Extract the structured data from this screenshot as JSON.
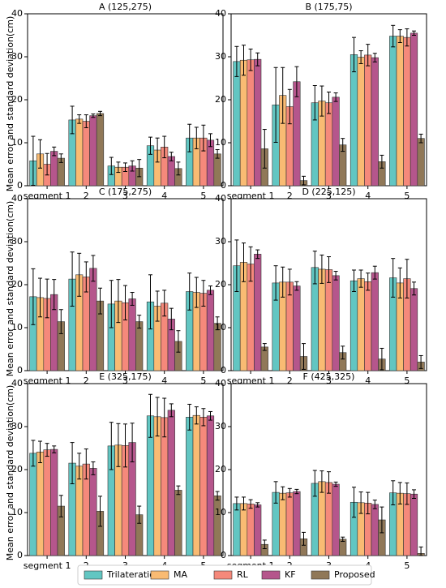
{
  "chart_data": {
    "type": "bar",
    "ylabel": "Mean error and standard deviation(cm)",
    "categories": [
      "segment 1",
      "2",
      "3",
      "4",
      "5"
    ],
    "legend": [
      "Trilateration",
      "MA",
      "RL",
      "KF",
      "Proposed"
    ],
    "colors": [
      "#62c6c2",
      "#f9bb73",
      "#f5897b",
      "#b5568c",
      "#907858"
    ],
    "ylim": [
      0,
      40
    ],
    "yticks": [
      "0",
      "10",
      "20",
      "30",
      "40"
    ],
    "panels": [
      {
        "title": "A (125,275)",
        "values": [
          [
            5.8,
            7.4,
            5.0,
            8.0,
            6.4
          ],
          [
            15.3,
            15.5,
            15.0,
            16.3,
            16.8
          ],
          [
            4.6,
            4.3,
            4.3,
            4.6,
            4.1
          ],
          [
            9.3,
            8.3,
            9.0,
            6.8,
            4.0
          ],
          [
            11.1,
            11.1,
            11.1,
            10.6,
            7.4
          ]
        ],
        "errors": [
          [
            5.7,
            3.3,
            2.5,
            1.0,
            1.0
          ],
          [
            3.2,
            1.0,
            1.5,
            0.4,
            0.5
          ],
          [
            2.0,
            1.2,
            1.0,
            1.2,
            2.0
          ],
          [
            2.0,
            2.8,
            2.5,
            1.0,
            1.5
          ],
          [
            3.2,
            2.5,
            3.0,
            1.5,
            1.0
          ]
        ]
      },
      {
        "title": "B (175,75)",
        "values": [
          [
            28.9,
            29.2,
            29.3,
            29.4,
            8.6
          ],
          [
            18.8,
            21.0,
            18.4,
            24.2,
            1.2
          ],
          [
            19.3,
            19.7,
            19.3,
            20.6,
            9.5
          ],
          [
            30.5,
            29.9,
            30.4,
            29.8,
            5.6
          ],
          [
            34.8,
            34.8,
            34.5,
            35.5,
            11.0
          ]
        ],
        "errors": [
          [
            3.5,
            3.5,
            2.5,
            1.5,
            4.5
          ],
          [
            8.7,
            6.5,
            4.0,
            3.5,
            1.0
          ],
          [
            4.0,
            3.5,
            2.5,
            1.0,
            1.5
          ],
          [
            4.0,
            1.5,
            2.5,
            1.0,
            1.5
          ],
          [
            2.5,
            1.5,
            2.0,
            0.5,
            1.0
          ]
        ]
      },
      {
        "title": "C (175,275)",
        "values": [
          [
            17.2,
            17.0,
            16.8,
            17.7,
            11.4
          ],
          [
            21.3,
            22.3,
            21.8,
            23.8,
            16.2
          ],
          [
            15.5,
            16.2,
            15.8,
            16.7,
            11.4
          ],
          [
            16.0,
            15.0,
            15.7,
            12.0,
            6.8
          ],
          [
            18.4,
            18.2,
            18.0,
            18.7,
            11.0
          ]
        ],
        "errors": [
          [
            6.5,
            4.5,
            4.5,
            3.5,
            2.8
          ],
          [
            6.3,
            5.0,
            3.5,
            3.0,
            3.0
          ],
          [
            5.5,
            5.0,
            4.0,
            1.5,
            1.5
          ],
          [
            6.3,
            3.5,
            3.0,
            2.5,
            2.5
          ],
          [
            4.3,
            3.5,
            3.0,
            1.0,
            1.5
          ]
        ]
      },
      {
        "title": "D (225,125)",
        "values": [
          [
            24.4,
            25.2,
            24.8,
            27.1,
            5.5
          ],
          [
            20.4,
            20.6,
            20.6,
            19.7,
            3.3
          ],
          [
            24.0,
            23.6,
            23.5,
            22.1,
            4.2
          ],
          [
            20.9,
            21.4,
            20.7,
            22.8,
            2.7
          ],
          [
            21.6,
            20.4,
            21.4,
            19.1,
            2.0
          ]
        ],
        "errors": [
          [
            6.0,
            4.5,
            4.0,
            1.0,
            0.8
          ],
          [
            4.0,
            3.5,
            3.0,
            1.0,
            3.0
          ],
          [
            3.8,
            3.3,
            3.0,
            1.0,
            1.5
          ],
          [
            2.5,
            2.0,
            2.0,
            1.5,
            2.5
          ],
          [
            4.5,
            3.5,
            4.5,
            1.5,
            1.5
          ]
        ]
      },
      {
        "title": "E (325,175)",
        "values": [
          [
            23.8,
            24.1,
            24.6,
            24.7,
            11.5
          ],
          [
            21.5,
            20.8,
            21.3,
            20.3,
            10.3
          ],
          [
            25.5,
            25.7,
            25.6,
            26.3,
            9.5
          ],
          [
            32.5,
            32.3,
            32.1,
            33.8,
            15.2
          ],
          [
            32.2,
            32.6,
            32.2,
            32.5,
            13.9
          ]
        ],
        "errors": [
          [
            3.0,
            2.5,
            1.5,
            0.8,
            2.5
          ],
          [
            4.8,
            3.0,
            3.5,
            1.5,
            3.5
          ],
          [
            5.5,
            5.0,
            5.0,
            4.5,
            2.0
          ],
          [
            5.0,
            4.5,
            4.5,
            1.5,
            1.0
          ],
          [
            3.0,
            2.0,
            2.0,
            1.0,
            1.0
          ]
        ]
      },
      {
        "title": "F (425,325)",
        "values": [
          [
            12.1,
            12.1,
            12.0,
            11.8,
            2.6
          ],
          [
            14.7,
            14.5,
            14.6,
            14.9,
            3.9
          ],
          [
            16.8,
            17.2,
            17.0,
            16.6,
            3.8
          ],
          [
            12.4,
            12.3,
            12.2,
            11.9,
            8.3
          ],
          [
            14.6,
            14.5,
            14.4,
            14.3,
            0.5
          ]
        ],
        "errors": [
          [
            1.5,
            1.5,
            1.0,
            0.5,
            1.0
          ],
          [
            2.5,
            1.5,
            1.0,
            0.5,
            1.5
          ],
          [
            3.0,
            2.5,
            2.5,
            0.5,
            0.5
          ],
          [
            3.5,
            2.5,
            2.5,
            1.0,
            3.0
          ],
          [
            2.8,
            2.5,
            2.5,
            1.0,
            1.5
          ]
        ]
      }
    ]
  }
}
